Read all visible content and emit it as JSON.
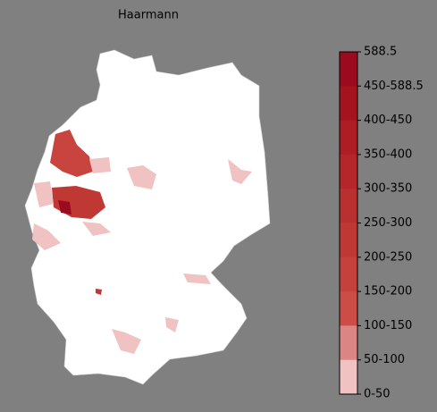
{
  "title": "Haarmann",
  "legend": {
    "labels": [
      "588.5",
      "450-588.5",
      "400-450",
      "350-400",
      "300-350",
      "250-300",
      "200-250",
      "150-200",
      "100-150",
      "50-100",
      "0-50"
    ],
    "colors": [
      "#9b0a1e",
      "#a5131f",
      "#ae1d24",
      "#b5262a",
      "#ba2f2f",
      "#c03834",
      "#c5413b",
      "#cc4c46",
      "#dc8585",
      "#f0c2c2",
      "#ffffff"
    ]
  }
}
